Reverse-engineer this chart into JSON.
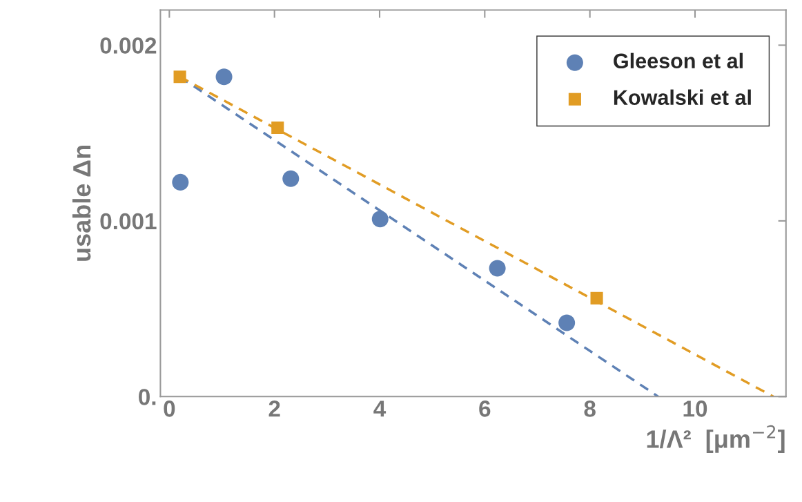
{
  "chart_data": {
    "type": "scatter",
    "xlabel": "1/Λ²  [μm$^{−2}$]",
    "ylabel": "usable Δn",
    "xlim": [
      -0.17,
      11.73
    ],
    "ylim": [
      0,
      0.0022
    ],
    "xticks": [
      0,
      2,
      4,
      6,
      8,
      10
    ],
    "yticks": [
      {
        "value": 0,
        "label": "0."
      },
      0.001,
      0.002
    ],
    "legend": "top right",
    "grid": false,
    "series": [
      {
        "name": "Gleeson et al",
        "marker": "circle",
        "color": "#5e81b5",
        "x": [
          0.21,
          1.04,
          2.31,
          4.01,
          6.24,
          7.56
        ],
        "values": [
          0.00122,
          0.00182,
          0.00124,
          0.00101,
          0.00073,
          0.00042
        ]
      },
      {
        "name": "Kowalski et al",
        "marker": "square",
        "color": "#e19c24",
        "x": [
          0.2,
          2.06,
          8.13
        ],
        "values": [
          0.00182,
          0.00153,
          0.00056
        ]
      },
      {
        "type": "line",
        "marker": "none",
        "line_style": "dashed",
        "color": "#5e81b5",
        "x": [
          0.2,
          9.3
        ],
        "values": [
          0.00182,
          0
        ]
      },
      {
        "type": "line",
        "marker": "none",
        "line_style": "dashed",
        "color": "#e19c24",
        "x": [
          0.2,
          11.49
        ],
        "values": [
          0.00182,
          0
        ]
      }
    ]
  }
}
